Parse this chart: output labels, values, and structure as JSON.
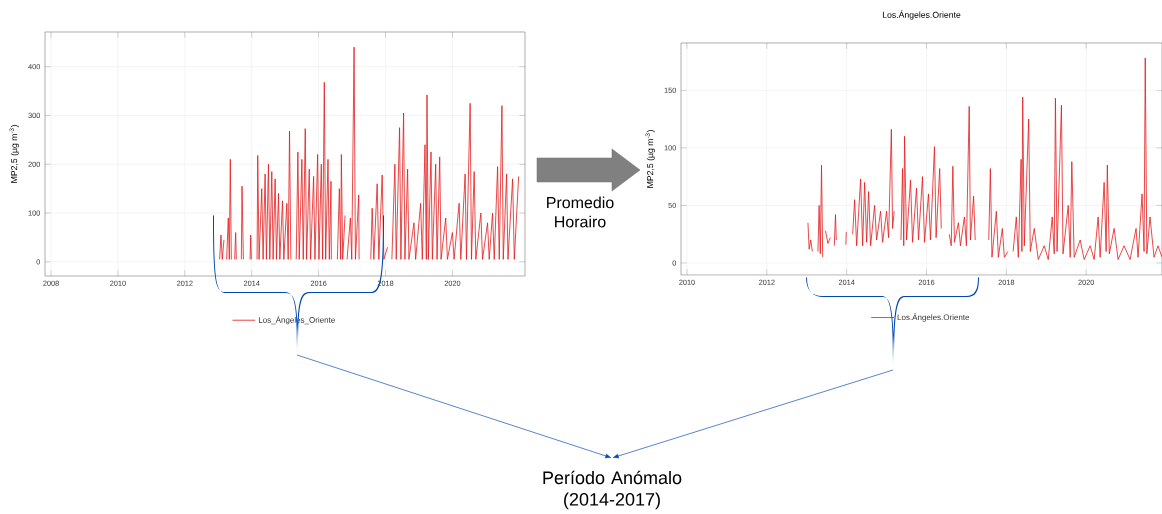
{
  "chart_data": [
    {
      "type": "line",
      "ylabel": "MP2,5 (µg m$^{-3}$)",
      "xlim": [
        2007.82,
        2022.17
      ],
      "ylim": [
        -29,
        471
      ],
      "xticks": [
        2008,
        2010,
        2012,
        2014,
        2016,
        2018,
        2020
      ],
      "yticks": [
        0,
        100,
        200,
        300,
        400
      ],
      "grid": true,
      "legend": "bottom",
      "series": [
        {
          "name": "Los_Ángeles_Oriente",
          "color": "#e31a1c",
          "x": [
            2013.04,
            2013.08,
            2013.12,
            2013.17,
            2013.2,
            2013.25,
            2013.3,
            2013.33,
            2013.36,
            2013.39,
            2013.44,
            2013.49,
            2013.52,
            2013.54,
            2013.6,
            2013.69,
            2013.71,
            2013.75,
            2013.85,
            2013.95,
            2013.97,
            2013.99,
            2014.08,
            2014.16,
            2014.18,
            2014.22,
            2014.3,
            2014.34,
            2014.4,
            2014.44,
            2014.5,
            2014.54,
            2014.6,
            2014.64,
            2014.7,
            2014.74,
            2014.8,
            2014.84,
            2014.92,
            2014.96,
            2015.05,
            2015.09,
            2015.13,
            2015.17,
            2015.25,
            2015.33,
            2015.38,
            2015.42,
            2015.5,
            2015.54,
            2015.6,
            2015.64,
            2015.72,
            2015.76,
            2015.85,
            2015.89,
            2015.97,
            2016.01,
            2016.08,
            2016.12,
            2016.17,
            2016.21,
            2016.28,
            2016.32,
            2016.37,
            2016.38,
            2016.47,
            2016.56,
            2016.62,
            2016.66,
            2016.68,
            2016.72,
            2016.79,
            2016.82,
            2016.85,
            2016.95,
            2016.99,
            2017.06,
            2017.1,
            2017.2,
            2017.21,
            2017.4,
            2017.56,
            2017.6,
            2017.65,
            2017.75,
            2017.8,
            2017.9,
            2017.95,
            2018.06,
            2018.12,
            2018.19,
            2018.28,
            2018.32,
            2018.42,
            2018.46,
            2018.54,
            2018.58,
            2018.66,
            2018.7,
            2018.85,
            2018.9,
            2019.05,
            2019.1,
            2019.18,
            2019.22,
            2019.24,
            2019.28,
            2019.36,
            2019.4,
            2019.5,
            2019.54,
            2019.62,
            2019.66,
            2019.8,
            2019.85,
            2020.0,
            2020.05,
            2020.2,
            2020.25,
            2020.38,
            2020.42,
            2020.53,
            2020.57,
            2020.65,
            2020.7,
            2020.85,
            2020.9,
            2021.05,
            2021.1,
            2021.2,
            2021.25,
            2021.35,
            2021.4,
            2021.48,
            2021.52,
            2021.62,
            2021.66,
            2021.8,
            2021.85,
            2021.98
          ],
          "values": [
            5,
            55,
            5,
            45,
            null,
            5,
            90,
            5,
            210,
            5,
            null,
            5,
            60,
            5,
            null,
            5,
            155,
            5,
            null,
            5,
            55,
            5,
            null,
            5,
            218,
            5,
            150,
            5,
            180,
            5,
            200,
            5,
            185,
            5,
            170,
            5,
            140,
            5,
            125,
            5,
            120,
            5,
            268,
            5,
            null,
            5,
            225,
            5,
            210,
            5,
            273,
            5,
            190,
            5,
            175,
            5,
            220,
            5,
            200,
            5,
            368,
            5,
            210,
            5,
            165,
            5,
            null,
            5,
            150,
            5,
            220,
            5,
            95,
            null,
            5,
            90,
            5,
            440,
            5,
            137,
            5,
            null,
            5,
            110,
            5,
            160,
            5,
            178,
            5,
            30,
            null,
            5,
            200,
            5,
            275,
            5,
            305,
            5,
            190,
            5,
            80,
            5,
            120,
            5,
            240,
            5,
            342,
            5,
            225,
            5,
            200,
            5,
            215,
            5,
            90,
            5,
            60,
            5,
            120,
            5,
            180,
            5,
            325,
            5,
            185,
            5,
            100,
            5,
            80,
            5,
            100,
            5,
            195,
            5,
            320,
            5,
            180,
            5,
            170,
            5,
            175
          ]
        }
      ]
    },
    {
      "type": "line",
      "title": "Los.Ángeles.Oriente",
      "ylabel": "MP2,5 (µg m$^{-3}$)",
      "xlim": [
        2009.85,
        2021.9
      ],
      "ylim": [
        -10.4,
        191
      ],
      "xticks": [
        2010,
        2012,
        2014,
        2016,
        2018,
        2020
      ],
      "yticks": [
        0,
        50,
        100,
        150
      ],
      "grid": true,
      "legend": "bottom",
      "series": [
        {
          "name": "Los.Ángeles.Oriente",
          "color": "#e31a1c",
          "x": [
            2013.03,
            2013.06,
            2013.1,
            2013.14,
            2013.2,
            2013.28,
            2013.31,
            2013.34,
            2013.37,
            2013.4,
            2013.44,
            2013.47,
            2013.53,
            2013.59,
            2013.63,
            2013.69,
            2013.72,
            2013.74,
            2013.85,
            2013.98,
            2013.99,
            2014.05,
            2014.15,
            2014.2,
            2014.25,
            2014.35,
            2014.4,
            2014.45,
            2014.5,
            2014.55,
            2014.6,
            2014.7,
            2014.75,
            2014.85,
            2014.9,
            2015.0,
            2015.05,
            2015.12,
            2015.15,
            2015.19,
            2015.28,
            2015.36,
            2015.4,
            2015.43,
            2015.45,
            2015.5,
            2015.6,
            2015.65,
            2015.75,
            2015.8,
            2015.9,
            2015.95,
            2016.05,
            2016.1,
            2016.2,
            2016.24,
            2016.33,
            2016.37,
            2016.45,
            2016.57,
            2016.62,
            2016.66,
            2016.7,
            2016.8,
            2016.85,
            2016.95,
            2017.0,
            2017.07,
            2017.1,
            2017.18,
            2017.22,
            2017.4,
            2017.56,
            2017.6,
            2017.64,
            2017.75,
            2017.8,
            2017.9,
            2017.95,
            2018.04,
            2018.1,
            2018.17,
            2018.25,
            2018.3,
            2018.37,
            2018.39,
            2018.41,
            2018.45,
            2018.56,
            2018.6,
            2018.7,
            2018.8,
            2018.95,
            2019.05,
            2019.15,
            2019.2,
            2019.23,
            2019.27,
            2019.38,
            2019.42,
            2019.55,
            2019.6,
            2019.64,
            2019.7,
            2019.85,
            2019.95,
            2020.1,
            2020.2,
            2020.3,
            2020.35,
            2020.45,
            2020.5,
            2020.53,
            2020.58,
            2020.7,
            2020.8,
            2020.95,
            2021.1,
            2021.25,
            2021.3,
            2021.4,
            2021.45,
            2021.48,
            2021.52,
            2021.6,
            2021.7,
            2021.8,
            2021.9
          ],
          "values": [
            35,
            12,
            20,
            10,
            null,
            10,
            50,
            8,
            85,
            5,
            null,
            28,
            17,
            22,
            null,
            15,
            42,
            20,
            null,
            16,
            27,
            null,
            25,
            55,
            15,
            73,
            15,
            70,
            18,
            62,
            15,
            50,
            20,
            45,
            18,
            45,
            22,
            116,
            30,
            45,
            null,
            20,
            82,
            15,
            110,
            20,
            72,
            18,
            65,
            20,
            75,
            18,
            60,
            20,
            101,
            22,
            82,
            30,
            null,
            25,
            15,
            84,
            18,
            35,
            15,
            40,
            15,
            136,
            20,
            58,
            20,
            null,
            20,
            82,
            5,
            45,
            5,
            30,
            5,
            10,
            null,
            10,
            40,
            5,
            90,
            10,
            144,
            15,
            125,
            10,
            30,
            3,
            15,
            3,
            40,
            8,
            143,
            10,
            137,
            8,
            50,
            5,
            88,
            5,
            20,
            3,
            15,
            3,
            40,
            5,
            70,
            10,
            85,
            8,
            30,
            3,
            15,
            3,
            30,
            5,
            60,
            10,
            178,
            8,
            40,
            5,
            15,
            5
          ]
        }
      ]
    },
    {
      "type": "other",
      "annotations": [
        "Promedio Horairo",
        "Período Anómalo (2014-2017)"
      ]
    }
  ]
}
